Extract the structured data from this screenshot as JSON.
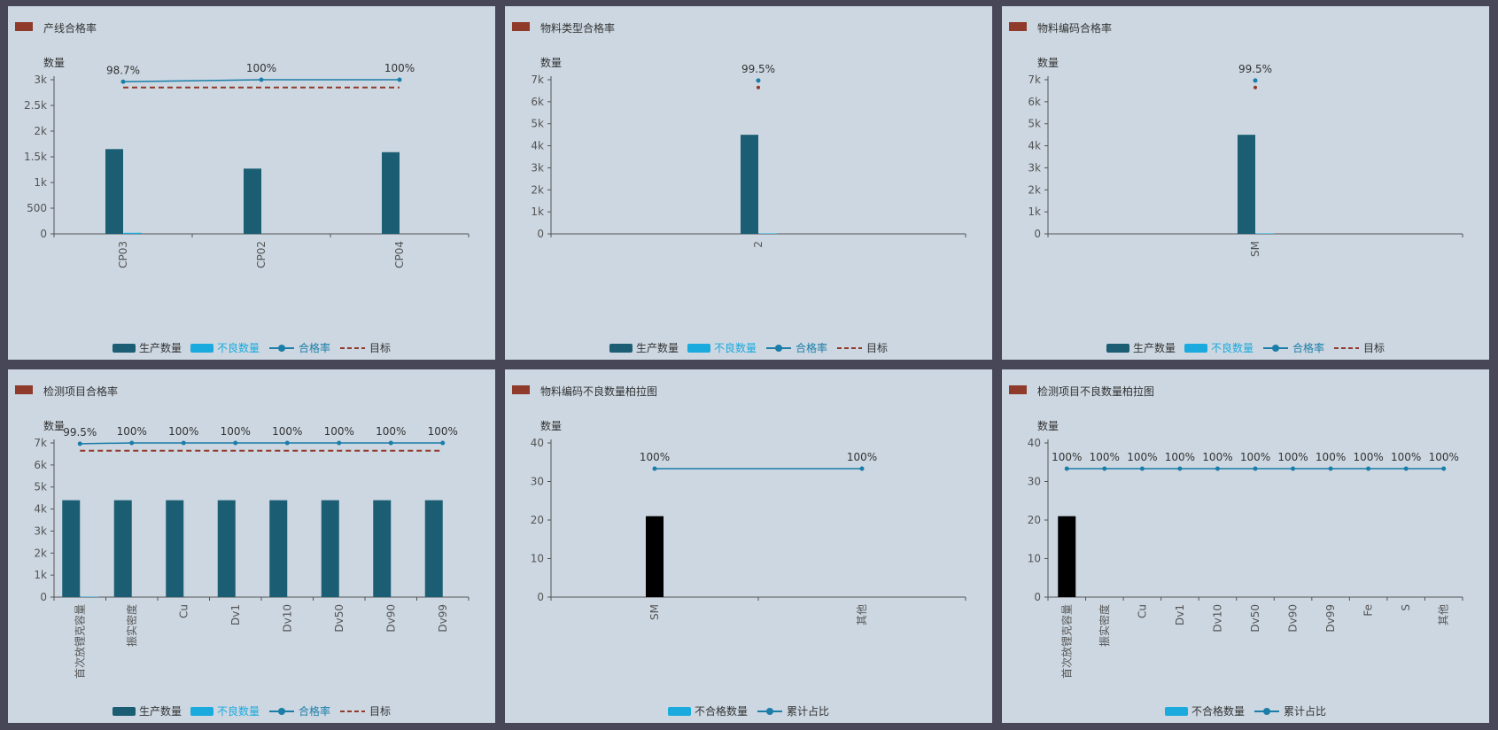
{
  "colors": {
    "title_mark": "#8f3a2a",
    "prod": "#1b5e73",
    "bad": "#1aaadd",
    "rate": "#1b7da8",
    "target": "#8f3a2a",
    "axis": "#555555",
    "text": "#333333"
  },
  "legend_labels": {
    "prod": "生产数量",
    "bad": "不良数量",
    "rate": "合格率",
    "target": "目标",
    "unq": "不合格数量",
    "cum": "累计占比"
  },
  "chart_data": [
    {
      "id": "c0",
      "title": "产线合格率",
      "type": "bar",
      "ylabel": "数量",
      "yticks": [
        "0",
        "500",
        "1k",
        "1.5k",
        "2k",
        "2.5k",
        "3k"
      ],
      "ylim": [
        0,
        3000
      ],
      "categories": [
        "CP03",
        "CP02",
        "CP04"
      ],
      "x_label_rotated": true,
      "series": [
        {
          "key": "prod",
          "values": [
            1650,
            1270,
            1590
          ]
        },
        {
          "key": "bad",
          "values": [
            21,
            0,
            0
          ]
        }
      ],
      "rate": {
        "values": [
          98.7,
          100,
          100
        ],
        "labels": [
          "98.7%",
          "100%",
          "100%"
        ],
        "plot_scale": 3000,
        "full_scale_value": 100
      },
      "target": {
        "value": 95,
        "scale": 100
      },
      "legend": [
        "prod",
        "bad",
        "rate",
        "target"
      ]
    },
    {
      "id": "c1",
      "title": "物料类型合格率",
      "type": "bar",
      "ylabel": "数量",
      "yticks": [
        "0",
        "1k",
        "2k",
        "3k",
        "4k",
        "5k",
        "6k",
        "7k"
      ],
      "ylim": [
        0,
        7000
      ],
      "categories": [
        "2"
      ],
      "x_label_rotated": true,
      "series": [
        {
          "key": "prod",
          "values": [
            4500
          ]
        },
        {
          "key": "bad",
          "values": [
            21
          ]
        }
      ],
      "rate": {
        "values": [
          99.5
        ],
        "labels": [
          "99.5%"
        ],
        "plot_scale": 7000,
        "full_scale_value": 100
      },
      "target": {
        "value": 95,
        "scale": 100
      },
      "legend": [
        "prod",
        "bad",
        "rate",
        "target"
      ]
    },
    {
      "id": "c2",
      "title": "物料编码合格率",
      "type": "bar",
      "ylabel": "数量",
      "yticks": [
        "0",
        "1k",
        "2k",
        "3k",
        "4k",
        "5k",
        "6k",
        "7k"
      ],
      "ylim": [
        0,
        7000
      ],
      "categories": [
        "SM"
      ],
      "x_label_rotated": true,
      "series": [
        {
          "key": "prod",
          "values": [
            4500
          ]
        },
        {
          "key": "bad",
          "values": [
            21
          ]
        }
      ],
      "rate": {
        "values": [
          99.5
        ],
        "labels": [
          "99.5%"
        ],
        "plot_scale": 7000,
        "full_scale_value": 100
      },
      "target": {
        "value": 95,
        "scale": 100
      },
      "legend": [
        "prod",
        "bad",
        "rate",
        "target"
      ]
    },
    {
      "id": "c3",
      "title": "检测项目合格率",
      "type": "bar",
      "ylabel": "数量",
      "yticks": [
        "0",
        "1k",
        "2k",
        "3k",
        "4k",
        "5k",
        "6k",
        "7k"
      ],
      "ylim": [
        0,
        7000
      ],
      "categories": [
        "首次放锂克容量",
        "振实密度",
        "Cu",
        "Dv1",
        "Dv10",
        "Dv50",
        "Dv90",
        "Dv99"
      ],
      "x_label_rotated": true,
      "series": [
        {
          "key": "prod",
          "values": [
            4400,
            4400,
            4400,
            4400,
            4400,
            4400,
            4400,
            4400
          ]
        },
        {
          "key": "bad",
          "values": [
            21,
            0,
            0,
            0,
            0,
            0,
            0,
            0
          ]
        }
      ],
      "rate": {
        "values": [
          99.5,
          100,
          100,
          100,
          100,
          100,
          100,
          100
        ],
        "labels": [
          "99.5%",
          "100%",
          "100%",
          "100%",
          "100%",
          "100%",
          "100%",
          "100%"
        ],
        "plot_scale": 7000,
        "full_scale_value": 100
      },
      "target": {
        "value": 95,
        "scale": 100
      },
      "legend": [
        "prod",
        "bad",
        "rate",
        "target"
      ]
    },
    {
      "id": "c4",
      "title": "物料编码不良数量柏拉图",
      "type": "bar",
      "ylabel": "数量",
      "yticks": [
        "0",
        "10",
        "20",
        "30",
        "40"
      ],
      "ylim": [
        0,
        40
      ],
      "categories": [
        "SM",
        "其他"
      ],
      "x_label_rotated": true,
      "series": [
        {
          "key": "unq",
          "values": [
            21,
            0
          ]
        }
      ],
      "rate": {
        "values": [
          100,
          100
        ],
        "labels": [
          "100%",
          "100%"
        ],
        "plot_scale": 40,
        "full_scale_value": 120
      },
      "legend": [
        "unq",
        "cum"
      ]
    },
    {
      "id": "c5",
      "title": "检测项目不良数量柏拉图",
      "type": "bar",
      "ylabel": "数量",
      "yticks": [
        "0",
        "10",
        "20",
        "30",
        "40"
      ],
      "ylim": [
        0,
        40
      ],
      "categories": [
        "首次放锂克容量",
        "振实密度",
        "Cu",
        "Dv1",
        "Dv10",
        "Dv50",
        "Dv90",
        "Dv99",
        "Fe",
        "S",
        "其他"
      ],
      "x_label_rotated": true,
      "series": [
        {
          "key": "unq",
          "values": [
            21,
            0,
            0,
            0,
            0,
            0,
            0,
            0,
            0,
            0,
            0
          ]
        }
      ],
      "rate": {
        "values": [
          100,
          100,
          100,
          100,
          100,
          100,
          100,
          100,
          100,
          100,
          100
        ],
        "labels": [
          "100%",
          "100%",
          "100%",
          "100%",
          "100%",
          "100%",
          "100%",
          "100%",
          "100%",
          "100%",
          "100%"
        ],
        "plot_scale": 40,
        "full_scale_value": 120
      },
      "legend": [
        "unq",
        "cum"
      ]
    }
  ]
}
